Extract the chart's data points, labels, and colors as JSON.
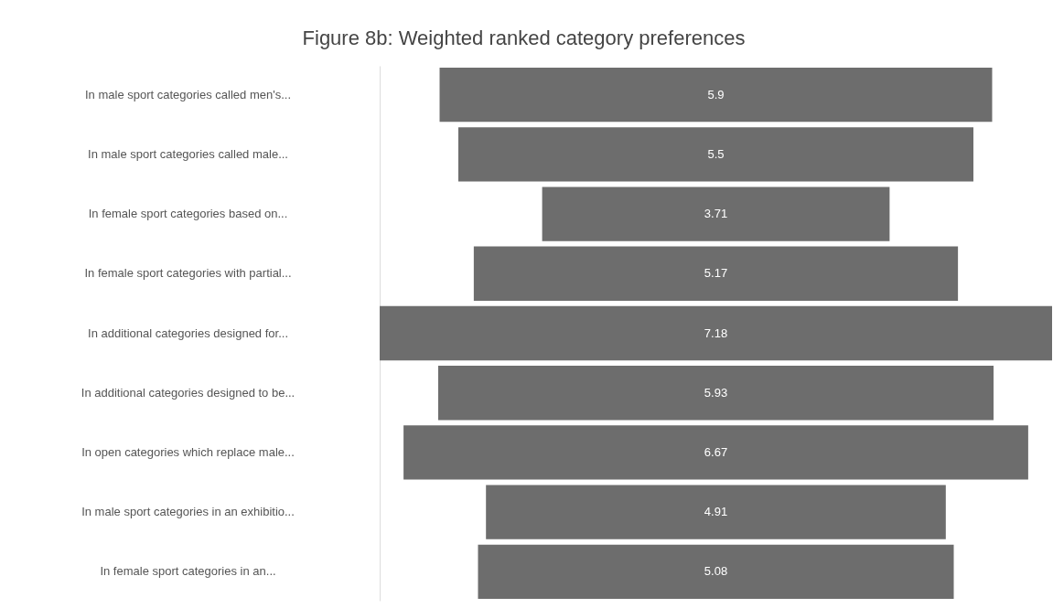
{
  "chart_data": {
    "type": "other",
    "title": "Figure 8b: Weighted ranked category preferences",
    "categories": [
      "In male sport categories called men's...",
      "In male sport categories called male...",
      "In female sport categories based on...",
      "In female sport categories with partial...",
      "In additional categories designed for...",
      "In additional categories designed to be...",
      "In open categories which replace male...",
      "In male sport categories in an exhibitio...",
      "In female sport categories in an..."
    ],
    "values": [
      5.9,
      5.5,
      3.71,
      5.17,
      7.18,
      5.93,
      6.67,
      4.91,
      5.08
    ],
    "color": "#6d6d6d",
    "data_labels": true
  }
}
